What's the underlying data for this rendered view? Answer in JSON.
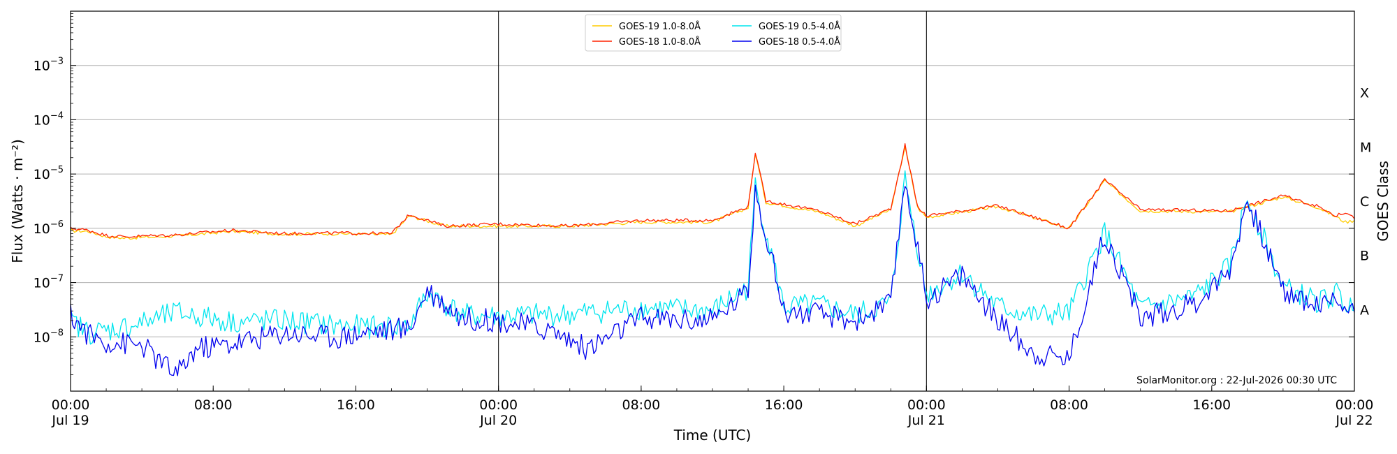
{
  "chart_data": {
    "type": "line",
    "xlabel": "Time (UTC)",
    "ylabel": "Flux (Watts · m⁻²)",
    "y2label": "GOES Class",
    "yscale": "log",
    "xlim": [
      "2026-07-19T00:00",
      "2026-07-22T00:00"
    ],
    "ylim": [
      1e-09,
      0.01
    ],
    "grid": "horizontal",
    "legend_position": "top-center",
    "credit": "SolarMonitor.org : 22-Jul-2026 00:30 UTC",
    "x_ticks": [
      {
        "label": "00:00",
        "sublabel": "Jul 19"
      },
      {
        "label": "08:00",
        "sublabel": ""
      },
      {
        "label": "16:00",
        "sublabel": ""
      },
      {
        "label": "00:00",
        "sublabel": "Jul 20"
      },
      {
        "label": "08:00",
        "sublabel": ""
      },
      {
        "label": "16:00",
        "sublabel": ""
      },
      {
        "label": "00:00",
        "sublabel": "Jul 21"
      },
      {
        "label": "08:00",
        "sublabel": ""
      },
      {
        "label": "16:00",
        "sublabel": ""
      },
      {
        "label": "00:00",
        "sublabel": "Jul 22"
      }
    ],
    "day_boundaries": [
      "2026-07-20T00:00",
      "2026-07-21T00:00"
    ],
    "y_ticks": [
      {
        "base": "10",
        "exp": "−8"
      },
      {
        "base": "10",
        "exp": "−7"
      },
      {
        "base": "10",
        "exp": "−6"
      },
      {
        "base": "10",
        "exp": "−5"
      },
      {
        "base": "10",
        "exp": "−4"
      },
      {
        "base": "10",
        "exp": "−3"
      }
    ],
    "goes_classes": [
      "A",
      "B",
      "C",
      "M",
      "X"
    ],
    "series": [
      {
        "name": "GOES-19 1.0-8.0Å",
        "color": "#ffcc00",
        "x": [
          "2026-07-19T00:00",
          "2026-07-19T01:00",
          "2026-07-19T02:00",
          "2026-07-19T03:00",
          "2026-07-19T06:00",
          "2026-07-19T09:00",
          "2026-07-19T12:00",
          "2026-07-19T15:00",
          "2026-07-19T18:00",
          "2026-07-19T19:00",
          "2026-07-19T21:00",
          "2026-07-20T00:00",
          "2026-07-20T04:00",
          "2026-07-20T08:00",
          "2026-07-20T12:00",
          "2026-07-20T14:00",
          "2026-07-20T14:24",
          "2026-07-20T15:00",
          "2026-07-20T18:00",
          "2026-07-20T20:00",
          "2026-07-20T22:00",
          "2026-07-20T22:48",
          "2026-07-20T23:30",
          "2026-07-21T00:00",
          "2026-07-21T04:00",
          "2026-07-21T08:00",
          "2026-07-21T10:00",
          "2026-07-21T12:00",
          "2026-07-21T17:00",
          "2026-07-21T20:00",
          "2026-07-21T22:00",
          "2026-07-21T23:00",
          "2026-07-21T23:30",
          "2026-07-22T00:00"
        ],
        "values": [
          9e-07,
          8.8e-07,
          7e-07,
          6.6e-07,
          7.2e-07,
          8.8e-07,
          7.8e-07,
          8e-07,
          7.6e-07,
          1.7e-06,
          1.1e-06,
          1.1e-06,
          1.1e-06,
          1.3e-06,
          1.3e-06,
          2.4e-06,
          2.4e-05,
          3e-06,
          2e-06,
          1.1e-06,
          2.2e-06,
          3.2e-05,
          2.4e-06,
          1.6e-06,
          2.5e-06,
          1e-06,
          7.5e-06,
          2.1e-06,
          2e-06,
          3.8e-06,
          2.4e-06,
          1.6e-06,
          1.3e-06,
          1.4e-06
        ]
      },
      {
        "name": "GOES-18 1.0-8.0Å",
        "color": "#ff2200",
        "x": [
          "2026-07-19T00:00",
          "2026-07-19T01:00",
          "2026-07-19T02:00",
          "2026-07-19T03:00",
          "2026-07-19T06:00",
          "2026-07-19T09:00",
          "2026-07-19T12:00",
          "2026-07-19T15:00",
          "2026-07-19T18:00",
          "2026-07-19T19:00",
          "2026-07-19T21:00",
          "2026-07-20T00:00",
          "2026-07-20T04:00",
          "2026-07-20T08:00",
          "2026-07-20T12:00",
          "2026-07-20T14:00",
          "2026-07-20T14:24",
          "2026-07-20T15:00",
          "2026-07-20T18:00",
          "2026-07-20T20:00",
          "2026-07-20T22:00",
          "2026-07-20T22:48",
          "2026-07-20T23:30",
          "2026-07-21T00:00",
          "2026-07-21T04:00",
          "2026-07-21T08:00",
          "2026-07-21T10:00",
          "2026-07-21T12:00",
          "2026-07-21T17:00",
          "2026-07-21T20:00",
          "2026-07-21T22:00",
          "2026-07-21T23:00",
          "2026-07-21T23:30",
          "2026-07-22T00:00"
        ],
        "values": [
          1e-06,
          9.2e-07,
          7.4e-07,
          7e-07,
          7.6e-07,
          9.2e-07,
          8e-07,
          8.2e-07,
          8e-07,
          1.8e-06,
          1.1e-06,
          1.2e-06,
          1.1e-06,
          1.4e-06,
          1.4e-06,
          2.5e-06,
          2.5e-05,
          3.2e-06,
          2.1e-06,
          1.2e-06,
          2.3e-06,
          3.4e-05,
          2.5e-06,
          1.7e-06,
          2.6e-06,
          1e-06,
          7.8e-06,
          2.2e-06,
          2.1e-06,
          4e-06,
          2.5e-06,
          1.7e-06,
          2e-06,
          1.5e-06
        ]
      },
      {
        "name": "GOES-19 0.5-4.0Å",
        "color": "#00e5ee",
        "x": [
          "2026-07-19T00:00",
          "2026-07-19T01:00",
          "2026-07-19T02:00",
          "2026-07-19T04:00",
          "2026-07-19T06:00",
          "2026-07-19T09:00",
          "2026-07-19T12:00",
          "2026-07-19T15:00",
          "2026-07-19T17:00",
          "2026-07-19T19:00",
          "2026-07-19T20:00",
          "2026-07-19T22:00",
          "2026-07-20T00:00",
          "2026-07-20T04:00",
          "2026-07-20T08:00",
          "2026-07-20T12:00",
          "2026-07-20T14:00",
          "2026-07-20T14:24",
          "2026-07-20T16:00",
          "2026-07-20T18:00",
          "2026-07-20T20:00",
          "2026-07-20T22:00",
          "2026-07-20T22:48",
          "2026-07-21T00:00",
          "2026-07-21T02:00",
          "2026-07-21T04:00",
          "2026-07-21T06:00",
          "2026-07-21T08:00",
          "2026-07-21T10:00",
          "2026-07-21T12:00",
          "2026-07-21T15:00",
          "2026-07-21T17:00",
          "2026-07-21T18:00",
          "2026-07-21T20:00",
          "2026-07-21T22:00",
          "2026-07-21T23:00",
          "2026-07-22T00:00"
        ],
        "values": [
          2e-08,
          1.2e-08,
          1.3e-08,
          1.8e-08,
          2.8e-08,
          1.9e-08,
          2e-08,
          1.6e-08,
          1.5e-08,
          1.6e-08,
          6.5e-08,
          2.5e-08,
          2.4e-08,
          2.6e-08,
          3.4e-08,
          3e-08,
          8e-08,
          6e-06,
          3.5e-08,
          3.8e-08,
          2.5e-08,
          4.2e-08,
          8.2e-06,
          6e-08,
          1.5e-07,
          3.6e-08,
          2.4e-08,
          2.7e-08,
          8.5e-07,
          3.2e-08,
          5.4e-08,
          1.9e-07,
          3.8e-06,
          8e-08,
          4.4e-08,
          6e-08,
          3e-08
        ]
      },
      {
        "name": "GOES-18 0.5-4.0Å",
        "color": "#0000ee",
        "x": [
          "2026-07-19T00:00",
          "2026-07-19T01:00",
          "2026-07-19T02:00",
          "2026-07-19T04:00",
          "2026-07-19T05:00",
          "2026-07-19T06:00",
          "2026-07-19T07:00",
          "2026-07-19T09:00",
          "2026-07-19T12:00",
          "2026-07-19T15:00",
          "2026-07-19T17:00",
          "2026-07-19T19:00",
          "2026-07-19T20:00",
          "2026-07-19T22:00",
          "2026-07-20T00:00",
          "2026-07-20T03:00",
          "2026-07-20T05:00",
          "2026-07-20T08:00",
          "2026-07-20T12:00",
          "2026-07-20T14:00",
          "2026-07-20T14:24",
          "2026-07-20T16:00",
          "2026-07-20T18:00",
          "2026-07-20T20:00",
          "2026-07-20T22:00",
          "2026-07-20T22:48",
          "2026-07-21T00:00",
          "2026-07-21T02:00",
          "2026-07-21T04:00",
          "2026-07-21T06:00",
          "2026-07-21T08:00",
          "2026-07-21T10:00",
          "2026-07-21T12:00",
          "2026-07-21T15:00",
          "2026-07-21T17:00",
          "2026-07-21T18:00",
          "2026-07-21T20:00",
          "2026-07-21T22:00",
          "2026-07-21T23:00",
          "2026-07-22T00:00"
        ],
        "values": [
          2.5e-08,
          1.1e-08,
          8e-09,
          7e-09,
          3.5e-09,
          2e-09,
          6e-09,
          7.5e-09,
          1.2e-08,
          1e-08,
          1.3e-08,
          1.4e-08,
          7.5e-08,
          2.2e-08,
          2e-08,
          1.3e-08,
          6e-09,
          2.2e-08,
          2e-08,
          7e-08,
          5.8e-06,
          3e-08,
          2.5e-08,
          2e-08,
          4e-08,
          8e-06,
          5e-08,
          1.4e-07,
          2e-08,
          5e-09,
          4e-09,
          8e-07,
          2.2e-08,
          4e-08,
          1.7e-07,
          3.5e-06,
          7e-08,
          3.8e-08,
          5e-08,
          2.8e-08
        ]
      }
    ]
  }
}
